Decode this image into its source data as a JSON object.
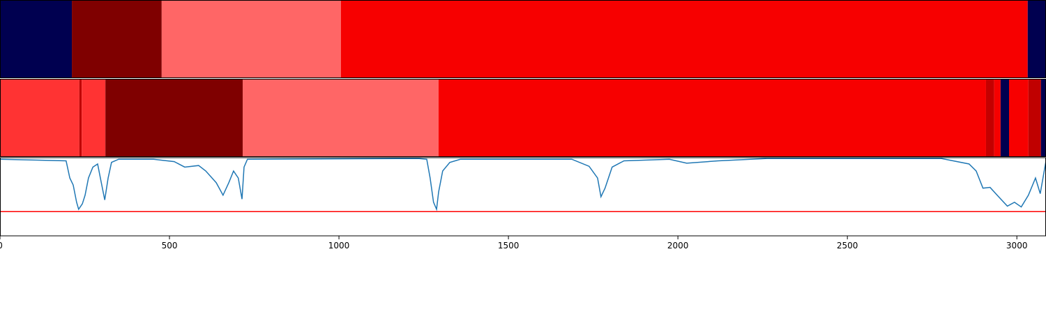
{
  "chart_data": [
    {
      "type": "segments",
      "xlim": [
        0,
        3086
      ],
      "segments": [
        {
          "start": 0,
          "end": 212,
          "color": "#000050"
        },
        {
          "start": 212,
          "end": 477,
          "color": "#7f0000"
        },
        {
          "start": 477,
          "end": 1006,
          "color": "#ff6666"
        },
        {
          "start": 1006,
          "end": 3032,
          "color": "#f70000"
        },
        {
          "start": 3032,
          "end": 3086,
          "color": "#000050"
        }
      ]
    },
    {
      "type": "segments",
      "xlim": [
        0,
        3086
      ],
      "segments": [
        {
          "start": 0,
          "end": 234,
          "color": "#ff3333"
        },
        {
          "start": 234,
          "end": 241,
          "color": "#c00000"
        },
        {
          "start": 241,
          "end": 311,
          "color": "#ff3333"
        },
        {
          "start": 311,
          "end": 716,
          "color": "#7f0000"
        },
        {
          "start": 716,
          "end": 1294,
          "color": "#ff6666"
        },
        {
          "start": 1294,
          "end": 2909,
          "color": "#f70000"
        },
        {
          "start": 2909,
          "end": 2933,
          "color": "#c40000"
        },
        {
          "start": 2933,
          "end": 2952,
          "color": "#f70000"
        },
        {
          "start": 2952,
          "end": 2977,
          "color": "#000050"
        },
        {
          "start": 2977,
          "end": 3034,
          "color": "#f70000"
        },
        {
          "start": 3034,
          "end": 3071,
          "color": "#c00000"
        },
        {
          "start": 3071,
          "end": 3086,
          "color": "#000050"
        }
      ]
    },
    {
      "type": "line",
      "xlim": [
        0,
        3086
      ],
      "ylim": [
        0,
        1
      ],
      "xticks": [
        0,
        500,
        1000,
        1500,
        2000,
        2500,
        3000
      ],
      "color": "#1f77b4",
      "threshold": 0.31,
      "threshold_color": "#ff0000",
      "x": [
        0,
        103,
        195,
        206,
        216,
        226,
        232,
        243,
        251,
        261,
        274,
        288,
        298,
        309,
        319,
        329,
        350,
        453,
        514,
        545,
        586,
        607,
        638,
        658,
        675,
        689,
        703,
        714,
        720,
        730,
        1234,
        1259,
        1269,
        1279,
        1288,
        1294,
        1306,
        1327,
        1358,
        1687,
        1738,
        1763,
        1773,
        1785,
        1806,
        1841,
        1975,
        2026,
        2119,
        2263,
        2777,
        2859,
        2880,
        2900,
        2921,
        2942,
        2972,
        2993,
        3013,
        3034,
        3055,
        3069,
        3086
      ],
      "values": [
        0.98,
        0.97,
        0.96,
        0.74,
        0.65,
        0.43,
        0.34,
        0.41,
        0.52,
        0.74,
        0.88,
        0.92,
        0.7,
        0.46,
        0.74,
        0.94,
        0.98,
        0.98,
        0.95,
        0.88,
        0.9,
        0.83,
        0.68,
        0.52,
        0.68,
        0.83,
        0.74,
        0.47,
        0.88,
        0.98,
        0.99,
        0.98,
        0.74,
        0.43,
        0.34,
        0.56,
        0.83,
        0.94,
        0.98,
        0.98,
        0.89,
        0.74,
        0.5,
        0.61,
        0.88,
        0.96,
        0.98,
        0.93,
        0.96,
        0.99,
        0.99,
        0.92,
        0.83,
        0.61,
        0.62,
        0.52,
        0.38,
        0.43,
        0.37,
        0.52,
        0.74,
        0.54,
        0.96
      ]
    }
  ]
}
